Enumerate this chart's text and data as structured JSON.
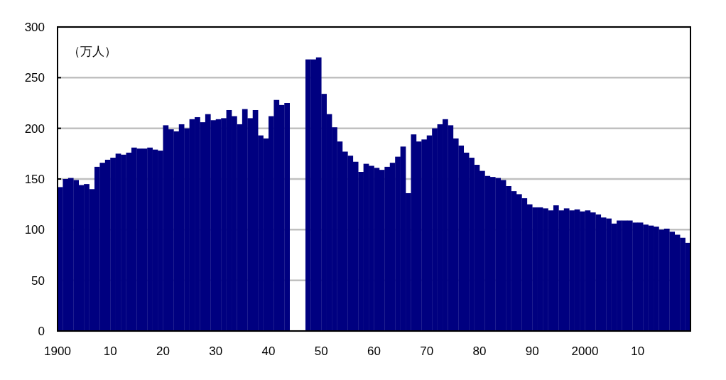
{
  "chart_data": {
    "type": "bar",
    "ylabel": "（万人）",
    "x": [
      1900,
      1901,
      1902,
      1903,
      1904,
      1905,
      1906,
      1907,
      1908,
      1909,
      1910,
      1911,
      1912,
      1913,
      1914,
      1915,
      1916,
      1917,
      1918,
      1919,
      1920,
      1921,
      1922,
      1923,
      1924,
      1925,
      1926,
      1927,
      1928,
      1929,
      1930,
      1931,
      1932,
      1933,
      1934,
      1935,
      1936,
      1937,
      1938,
      1939,
      1940,
      1941,
      1942,
      1943,
      1947,
      1948,
      1949,
      1950,
      1951,
      1952,
      1953,
      1954,
      1955,
      1956,
      1957,
      1958,
      1959,
      1960,
      1961,
      1962,
      1963,
      1964,
      1965,
      1966,
      1967,
      1968,
      1969,
      1970,
      1971,
      1972,
      1973,
      1974,
      1975,
      1976,
      1977,
      1978,
      1979,
      1980,
      1981,
      1982,
      1983,
      1984,
      1985,
      1986,
      1987,
      1988,
      1989,
      1990,
      1991,
      1992,
      1993,
      1994,
      1995,
      1996,
      1997,
      1998,
      1999,
      2000,
      2001,
      2002,
      2003,
      2004,
      2005,
      2006,
      2007,
      2008,
      2009,
      2010,
      2011,
      2012,
      2013,
      2014,
      2015,
      2016,
      2017,
      2018,
      2019
    ],
    "series": [
      {
        "color": "#000080",
        "values": [
          142,
          150,
          151,
          149,
          144,
          145,
          140,
          162,
          166,
          169,
          171,
          175,
          174,
          176,
          181,
          180,
          180,
          181,
          179,
          178,
          203,
          199,
          197,
          204,
          200,
          209,
          211,
          206,
          214,
          208,
          209,
          210,
          218,
          212,
          204,
          219,
          210,
          218,
          193,
          190,
          212,
          228,
          223,
          225,
          268,
          268,
          270,
          234,
          214,
          201,
          187,
          177,
          173,
          167,
          157,
          165,
          163,
          161,
          159,
          162,
          166,
          172,
          182,
          136,
          194,
          187,
          189,
          193,
          200,
          204,
          209,
          203,
          190,
          183,
          176,
          171,
          164,
          158,
          153,
          152,
          151,
          149,
          143,
          138,
          135,
          131,
          125,
          122,
          122,
          121,
          119,
          124,
          119,
          121,
          119,
          120,
          118,
          119,
          117,
          115,
          112,
          111,
          106,
          109,
          109,
          109,
          107,
          107,
          105,
          104,
          103,
          100,
          101,
          98,
          95,
          92,
          87
        ]
      }
    ],
    "xlim": [
      1900,
      2020
    ],
    "xticks": [
      {
        "value": 1900,
        "label": "1900"
      },
      {
        "value": 1910,
        "label": "10"
      },
      {
        "value": 1920,
        "label": "20"
      },
      {
        "value": 1930,
        "label": "30"
      },
      {
        "value": 1940,
        "label": "40"
      },
      {
        "value": 1950,
        "label": "50"
      },
      {
        "value": 1960,
        "label": "60"
      },
      {
        "value": 1970,
        "label": "70"
      },
      {
        "value": 1980,
        "label": "80"
      },
      {
        "value": 1990,
        "label": "90"
      },
      {
        "value": 2000,
        "label": "2000"
      },
      {
        "value": 2010,
        "label": "10"
      }
    ],
    "ylim": [
      0,
      300
    ],
    "yticks": [
      0,
      50,
      100,
      150,
      200,
      250,
      300
    ],
    "grid": "y"
  }
}
